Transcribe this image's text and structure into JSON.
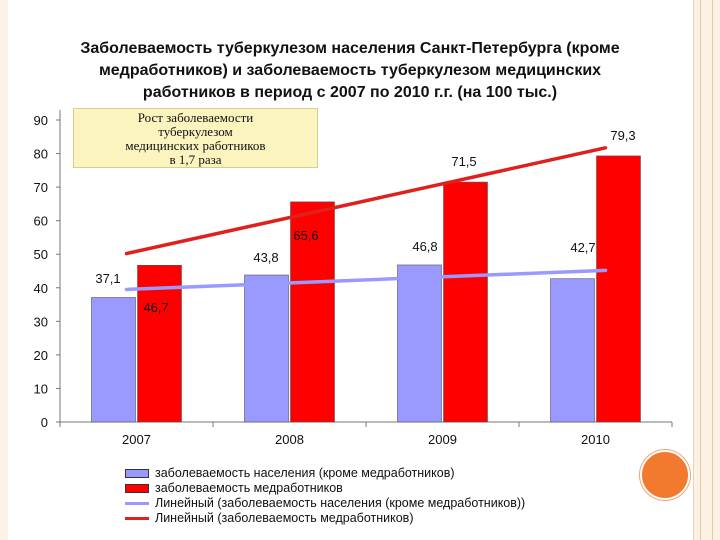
{
  "title_lines": [
    "Заболеваемость туберкулезом населения Санкт-Петербурга (кроме",
    "медработников) и заболеваемость туберкулезом медицинских",
    "работников в период с 2007 по 2010 г.г. (на 100 тыс.)"
  ],
  "note_lines": [
    "Рост заболеваемости",
    "туберкулезом",
    "медицинских работников",
    "в 1,7 раза"
  ],
  "chart_data": {
    "type": "bar",
    "categories": [
      "2007",
      "2008",
      "2009",
      "2010"
    ],
    "ylim": [
      0,
      90
    ],
    "yticks": [
      0,
      10,
      20,
      30,
      40,
      50,
      60,
      70,
      80,
      90
    ],
    "series": [
      {
        "name": "заболеваемость населения (кроме медработников)",
        "values": [
          37.1,
          43.8,
          46.8,
          42.7
        ],
        "labels": [
          "37,1",
          "43,8",
          "46,8",
          "42,7"
        ],
        "color": "#9999ff"
      },
      {
        "name": "заболеваемость медработников",
        "values": [
          46.7,
          65.6,
          71.5,
          79.3
        ],
        "labels": [
          "46,7",
          "65,6",
          "71,5",
          "79,3"
        ],
        "color": "#ff0000"
      }
    ],
    "trendlines": [
      {
        "name": "Линейный (заболеваемость населения (кроме медработников))",
        "start": 39.5,
        "end": 45.2,
        "color": "#9999ff"
      },
      {
        "name": "Линейный (заболеваемость медработников)",
        "start": 50.2,
        "end": 81.7,
        "color": "#e0201d"
      }
    ],
    "legend": "bottom"
  }
}
